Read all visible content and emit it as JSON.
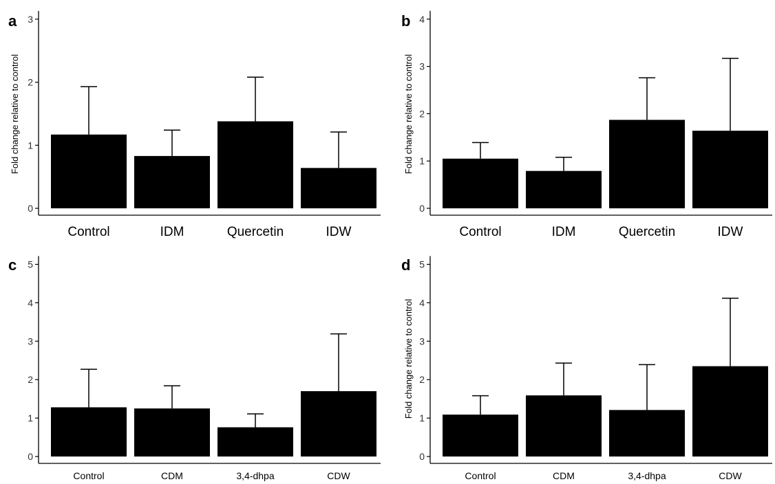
{
  "chart_data": [
    {
      "panel": "a",
      "type": "bar",
      "ylabel": "Fold change relative to control",
      "categories": [
        "Control",
        "IDM",
        "Quercetin",
        "IDW"
      ],
      "values": [
        1.17,
        0.83,
        1.38,
        0.64
      ],
      "error_upper": [
        1.93,
        1.24,
        2.08,
        1.21
      ],
      "ylim": [
        0,
        3
      ],
      "yticks": [
        "0",
        "1",
        "2",
        "3"
      ],
      "colors": {
        "bar": "#000000"
      }
    },
    {
      "panel": "b",
      "type": "bar",
      "ylabel": "Fold change relative to control",
      "categories": [
        "Control",
        "IDM",
        "Quercetin",
        "IDW"
      ],
      "values": [
        1.05,
        0.79,
        1.87,
        1.64
      ],
      "error_upper": [
        1.39,
        1.08,
        2.76,
        3.17
      ],
      "ylim": [
        0,
        4
      ],
      "yticks": [
        "0",
        "1",
        "2",
        "3",
        "4"
      ],
      "colors": {
        "bar": "#000000"
      }
    },
    {
      "panel": "c",
      "type": "bar",
      "ylabel": "",
      "categories": [
        "Control",
        "CDM",
        "3,4-dhpa",
        "CDW"
      ],
      "values": [
        1.28,
        1.25,
        0.76,
        1.7
      ],
      "error_upper": [
        2.27,
        1.84,
        1.11,
        3.19
      ],
      "ylim": [
        0,
        5
      ],
      "yticks": [
        "0",
        "1",
        "2",
        "3",
        "4",
        "5"
      ],
      "colors": {
        "bar": "#000000"
      }
    },
    {
      "panel": "d",
      "type": "bar",
      "ylabel": "Fold change relative to control",
      "categories": [
        "Control",
        "CDM",
        "3,4-dhpa",
        "CDW"
      ],
      "values": [
        1.09,
        1.59,
        1.21,
        2.35
      ],
      "error_upper": [
        1.58,
        2.43,
        2.39,
        4.12
      ],
      "ylim": [
        0,
        5
      ],
      "yticks": [
        "0",
        "1",
        "2",
        "3",
        "4",
        "5"
      ],
      "colors": {
        "bar": "#000000"
      }
    }
  ]
}
